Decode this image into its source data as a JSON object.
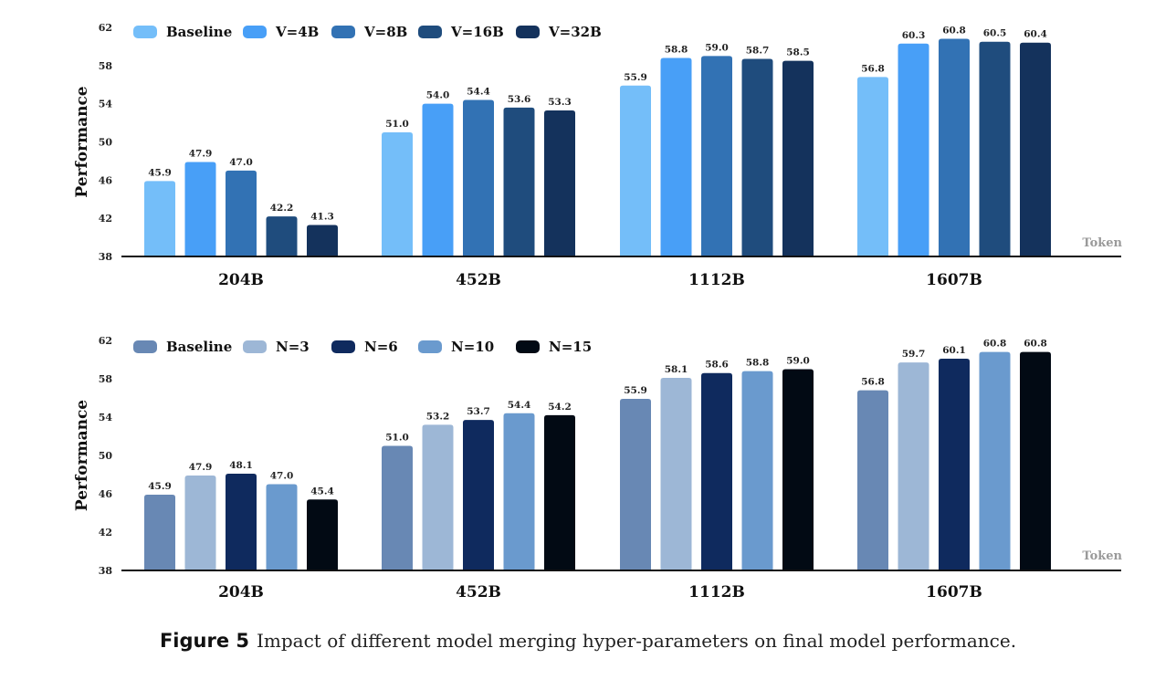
{
  "chart_data": [
    {
      "type": "bar",
      "ylabel": "Performance",
      "xlabel": "Token",
      "ylim": [
        38,
        62
      ],
      "yticks": [
        38,
        42,
        46,
        50,
        54,
        58,
        62
      ],
      "categories": [
        "204B",
        "452B",
        "1112B",
        "1607B"
      ],
      "legend_position": "top-left",
      "series": [
        {
          "name": "Baseline",
          "color": "#74BEF9",
          "values": [
            45.9,
            51.0,
            55.9,
            56.8
          ]
        },
        {
          "name": "V=4B",
          "color": "#489FF7",
          "values": [
            47.9,
            54.0,
            58.8,
            60.3
          ]
        },
        {
          "name": "V=8B",
          "color": "#3272B4",
          "values": [
            47.0,
            54.4,
            59.0,
            60.8
          ]
        },
        {
          "name": "V=16B",
          "color": "#1F4C7D",
          "values": [
            42.2,
            53.6,
            58.7,
            60.5
          ]
        },
        {
          "name": "V=32B",
          "color": "#14325C",
          "values": [
            41.3,
            53.3,
            58.5,
            60.4
          ]
        }
      ]
    },
    {
      "type": "bar",
      "ylabel": "Performance",
      "xlabel": "Token",
      "ylim": [
        38,
        62
      ],
      "yticks": [
        38,
        42,
        46,
        50,
        54,
        58,
        62
      ],
      "categories": [
        "204B",
        "452B",
        "1112B",
        "1607B"
      ],
      "legend_position": "top-left",
      "series": [
        {
          "name": "Baseline",
          "color": "#6888B4",
          "values": [
            45.9,
            51.0,
            55.9,
            56.8
          ]
        },
        {
          "name": "N=3",
          "color": "#9DB7D6",
          "values": [
            47.9,
            53.2,
            58.1,
            59.7
          ]
        },
        {
          "name": "N=6",
          "color": "#0F2A5E",
          "values": [
            48.1,
            53.7,
            58.6,
            60.1
          ]
        },
        {
          "name": "N=10",
          "color": "#6A9ACE",
          "values": [
            47.0,
            54.4,
            58.8,
            60.8
          ]
        },
        {
          "name": "N=15",
          "color": "#020A14",
          "values": [
            45.4,
            54.2,
            59.0,
            60.8
          ]
        }
      ]
    }
  ],
  "caption": {
    "label": "Figure 5",
    "text": "Impact of different model merging hyper-parameters on final model performance."
  }
}
